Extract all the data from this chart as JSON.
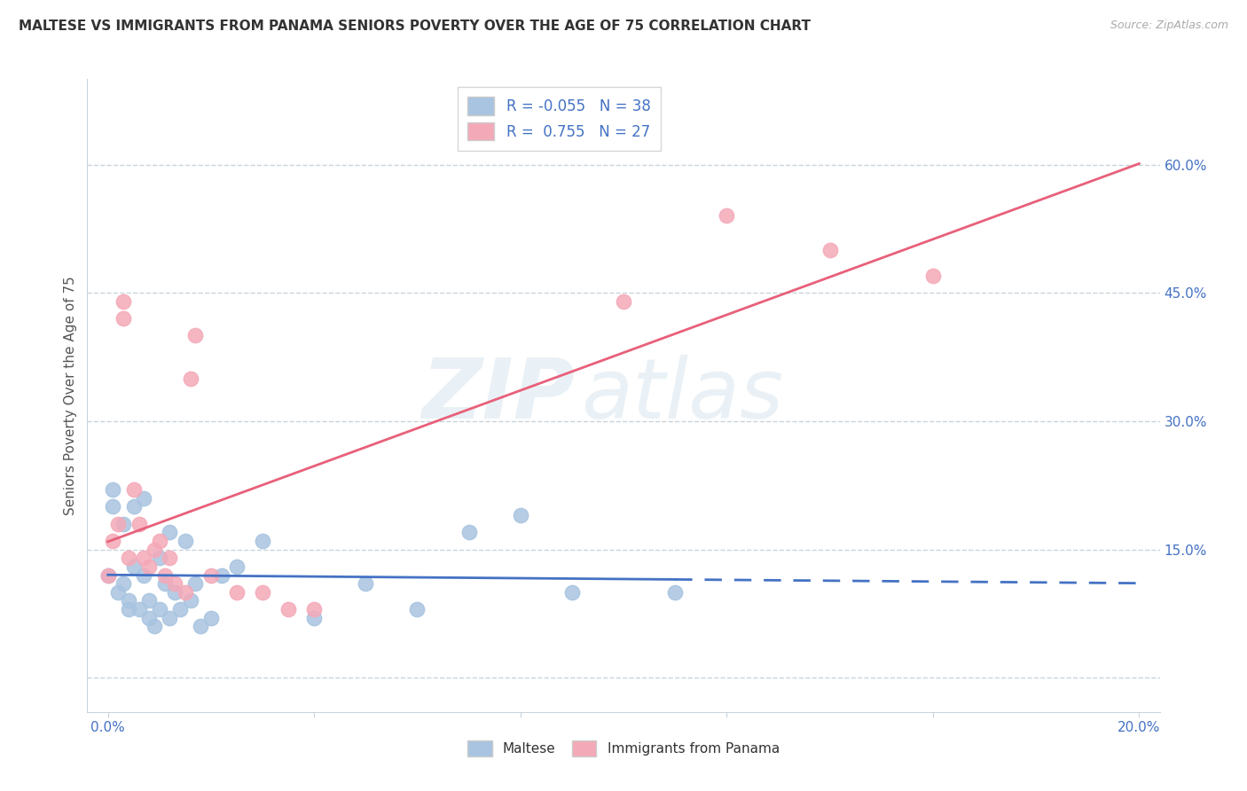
{
  "title": "MALTESE VS IMMIGRANTS FROM PANAMA SENIORS POVERTY OVER THE AGE OF 75 CORRELATION CHART",
  "source": "Source: ZipAtlas.com",
  "ylabel": "Seniors Poverty Over the Age of 75",
  "xlim": [
    -0.004,
    0.204
  ],
  "ylim": [
    -0.04,
    0.7
  ],
  "xticks": [
    0.0,
    0.04,
    0.08,
    0.12,
    0.16,
    0.2
  ],
  "xticklabels_show": [
    "0.0%",
    "",
    "",
    "",
    "",
    "20.0%"
  ],
  "yticks": [
    0.0,
    0.15,
    0.3,
    0.45,
    0.6
  ],
  "yticklabels": [
    "",
    "15.0%",
    "30.0%",
    "45.0%",
    "60.0%"
  ],
  "R_maltese": -0.055,
  "N_maltese": 38,
  "R_panama": 0.755,
  "N_panama": 27,
  "maltese_color": "#a8c4e0",
  "panama_color": "#f4a9b8",
  "maltese_line_color": "#4472c4",
  "panama_line_color": "#e8607a",
  "maltese_scatter_x": [
    0.0,
    0.001,
    0.001,
    0.002,
    0.003,
    0.003,
    0.004,
    0.004,
    0.005,
    0.005,
    0.006,
    0.007,
    0.007,
    0.008,
    0.008,
    0.009,
    0.01,
    0.01,
    0.011,
    0.012,
    0.012,
    0.013,
    0.014,
    0.015,
    0.016,
    0.017,
    0.018,
    0.02,
    0.022,
    0.025,
    0.03,
    0.04,
    0.05,
    0.06,
    0.07,
    0.08,
    0.09,
    0.11
  ],
  "maltese_scatter_y": [
    0.12,
    0.2,
    0.22,
    0.1,
    0.18,
    0.11,
    0.09,
    0.08,
    0.13,
    0.2,
    0.08,
    0.12,
    0.21,
    0.09,
    0.07,
    0.06,
    0.14,
    0.08,
    0.11,
    0.07,
    0.17,
    0.1,
    0.08,
    0.16,
    0.09,
    0.11,
    0.06,
    0.07,
    0.12,
    0.13,
    0.16,
    0.07,
    0.11,
    0.08,
    0.17,
    0.19,
    0.1,
    0.1
  ],
  "panama_scatter_x": [
    0.0,
    0.001,
    0.002,
    0.003,
    0.003,
    0.004,
    0.005,
    0.006,
    0.007,
    0.008,
    0.009,
    0.01,
    0.011,
    0.012,
    0.013,
    0.015,
    0.016,
    0.017,
    0.02,
    0.025,
    0.03,
    0.035,
    0.04,
    0.1,
    0.12,
    0.14,
    0.16
  ],
  "panama_scatter_y": [
    0.12,
    0.16,
    0.18,
    0.44,
    0.42,
    0.14,
    0.22,
    0.18,
    0.14,
    0.13,
    0.15,
    0.16,
    0.12,
    0.14,
    0.11,
    0.1,
    0.35,
    0.4,
    0.12,
    0.1,
    0.1,
    0.08,
    0.08,
    0.44,
    0.54,
    0.5,
    0.47
  ],
  "background_color": "#ffffff",
  "grid_color": "#c8d4dc",
  "watermark_zip": "ZIP",
  "watermark_atlas": "atlas",
  "title_fontsize": 11,
  "tick_fontsize": 11,
  "legend_text_color": "#4472c4",
  "axis_label_color": "#555555"
}
